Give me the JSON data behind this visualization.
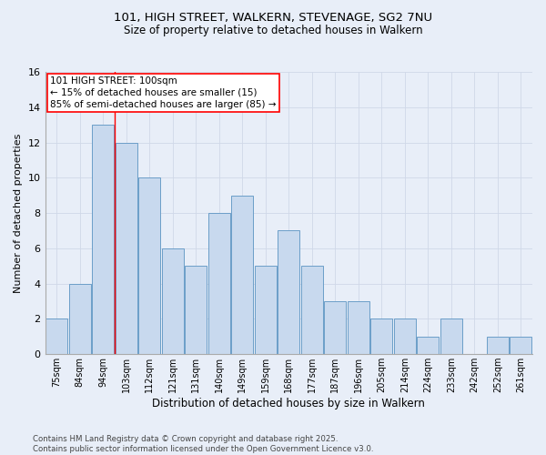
{
  "title_line1": "101, HIGH STREET, WALKERN, STEVENAGE, SG2 7NU",
  "title_line2": "Size of property relative to detached houses in Walkern",
  "xlabel": "Distribution of detached houses by size in Walkern",
  "ylabel": "Number of detached properties",
  "categories": [
    "75sqm",
    "84sqm",
    "94sqm",
    "103sqm",
    "112sqm",
    "121sqm",
    "131sqm",
    "140sqm",
    "149sqm",
    "159sqm",
    "168sqm",
    "177sqm",
    "187sqm",
    "196sqm",
    "205sqm",
    "214sqm",
    "224sqm",
    "233sqm",
    "242sqm",
    "252sqm",
    "261sqm"
  ],
  "values": [
    2,
    4,
    13,
    12,
    10,
    6,
    5,
    8,
    9,
    5,
    7,
    5,
    3,
    3,
    2,
    2,
    1,
    2,
    0,
    1,
    1
  ],
  "bar_color": "#c8d9ee",
  "bar_edge_color": "#6b9ec8",
  "grid_color": "#d0d8e8",
  "bg_color": "#e8eef8",
  "red_line_x": 2.5,
  "annotation_text": "101 HIGH STREET: 100sqm\n← 15% of detached houses are smaller (15)\n85% of semi-detached houses are larger (85) →",
  "annotation_box_color": "white",
  "annotation_box_edge": "red",
  "ylim": [
    0,
    16
  ],
  "yticks": [
    0,
    2,
    4,
    6,
    8,
    10,
    12,
    14,
    16
  ],
  "footer": "Contains HM Land Registry data © Crown copyright and database right 2025.\nContains public sector information licensed under the Open Government Licence v3.0."
}
